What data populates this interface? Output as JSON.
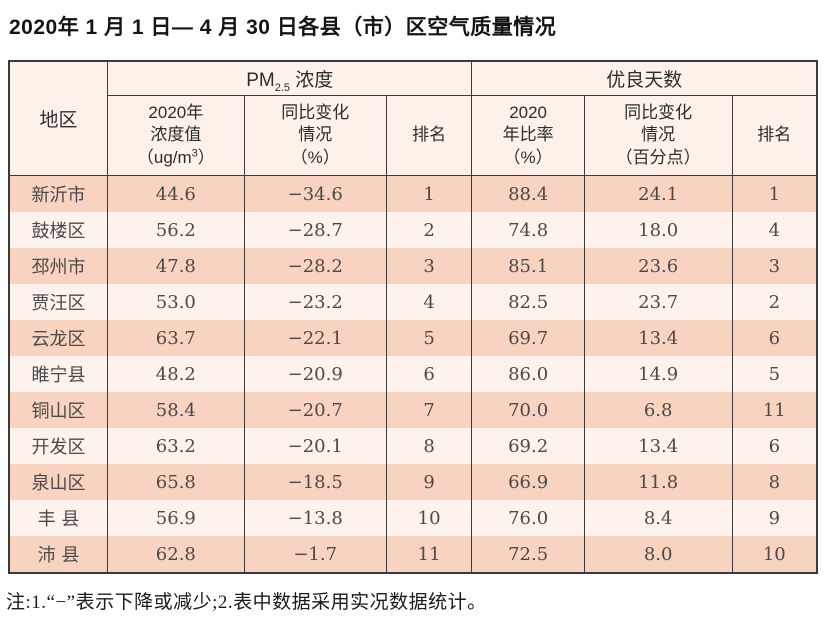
{
  "page": {
    "title": "2020年 1 月 1 日— 4 月 30 日各县（市）区空气质量情况",
    "footnote": "注:1.“−”表示下降或减少;2.表中数据采用实况数据统计。"
  },
  "table": {
    "header": {
      "region": "地区",
      "pm25_group_prefix": "PM",
      "pm25_group_sub": "2.5",
      "pm25_group_suffix": " 浓度",
      "good_days_group": "优良天数",
      "pm25_value_main": "2020年\n浓度值\n（ug/m",
      "pm25_value_sup": "3",
      "pm25_value_close": "）",
      "pm25_change": "同比变化\n情况\n（%）",
      "pm25_rank": "排名",
      "good_rate": "2020\n年比率\n（%）",
      "good_change": "同比变化\n情况\n（百分点）",
      "good_rank": "排名"
    },
    "column_keys": [
      "region",
      "pm25_value",
      "pm25_change",
      "pm25_rank",
      "good_rate",
      "good_change",
      "good_rank"
    ],
    "rows": [
      {
        "region": "新沂市",
        "pm25_value": "44.6",
        "pm25_change": "−34.6",
        "pm25_rank": "1",
        "good_rate": "88.4",
        "good_change": "24.1",
        "good_rank": "1"
      },
      {
        "region": "鼓楼区",
        "pm25_value": "56.2",
        "pm25_change": "−28.7",
        "pm25_rank": "2",
        "good_rate": "74.8",
        "good_change": "18.0",
        "good_rank": "4"
      },
      {
        "region": "邳州市",
        "pm25_value": "47.8",
        "pm25_change": "−28.2",
        "pm25_rank": "3",
        "good_rate": "85.1",
        "good_change": "23.6",
        "good_rank": "3"
      },
      {
        "region": "贾汪区",
        "pm25_value": "53.0",
        "pm25_change": "−23.2",
        "pm25_rank": "4",
        "good_rate": "82.5",
        "good_change": "23.7",
        "good_rank": "2"
      },
      {
        "region": "云龙区",
        "pm25_value": "63.7",
        "pm25_change": "−22.1",
        "pm25_rank": "5",
        "good_rate": "69.7",
        "good_change": "13.4",
        "good_rank": "6"
      },
      {
        "region": "睢宁县",
        "pm25_value": "48.2",
        "pm25_change": "−20.9",
        "pm25_rank": "6",
        "good_rate": "86.0",
        "good_change": "14.9",
        "good_rank": "5"
      },
      {
        "region": "铜山区",
        "pm25_value": "58.4",
        "pm25_change": "−20.7",
        "pm25_rank": "7",
        "good_rate": "70.0",
        "good_change": "6.8",
        "good_rank": "11"
      },
      {
        "region": "开发区",
        "pm25_value": "63.2",
        "pm25_change": "−20.1",
        "pm25_rank": "8",
        "good_rate": "69.2",
        "good_change": "13.4",
        "good_rank": "6"
      },
      {
        "region": "泉山区",
        "pm25_value": "65.8",
        "pm25_change": "−18.5",
        "pm25_rank": "9",
        "good_rate": "66.9",
        "good_change": "11.8",
        "good_rank": "8"
      },
      {
        "region": "丰 县",
        "pm25_value": "56.9",
        "pm25_change": "−13.8",
        "pm25_rank": "10",
        "good_rate": "76.0",
        "good_change": "8.4",
        "good_rank": "9"
      },
      {
        "region": "沛 县",
        "pm25_value": "62.8",
        "pm25_change": "−1.7",
        "pm25_rank": "11",
        "good_rate": "72.5",
        "good_change": "8.0",
        "good_rank": "10"
      }
    ]
  },
  "colors": {
    "row_odd": "#f8d3c0",
    "row_even": "#fdf2ec",
    "header_bg": "#fdf1e9",
    "border": "#3a3a3a",
    "body_text": "#4c4a48"
  }
}
